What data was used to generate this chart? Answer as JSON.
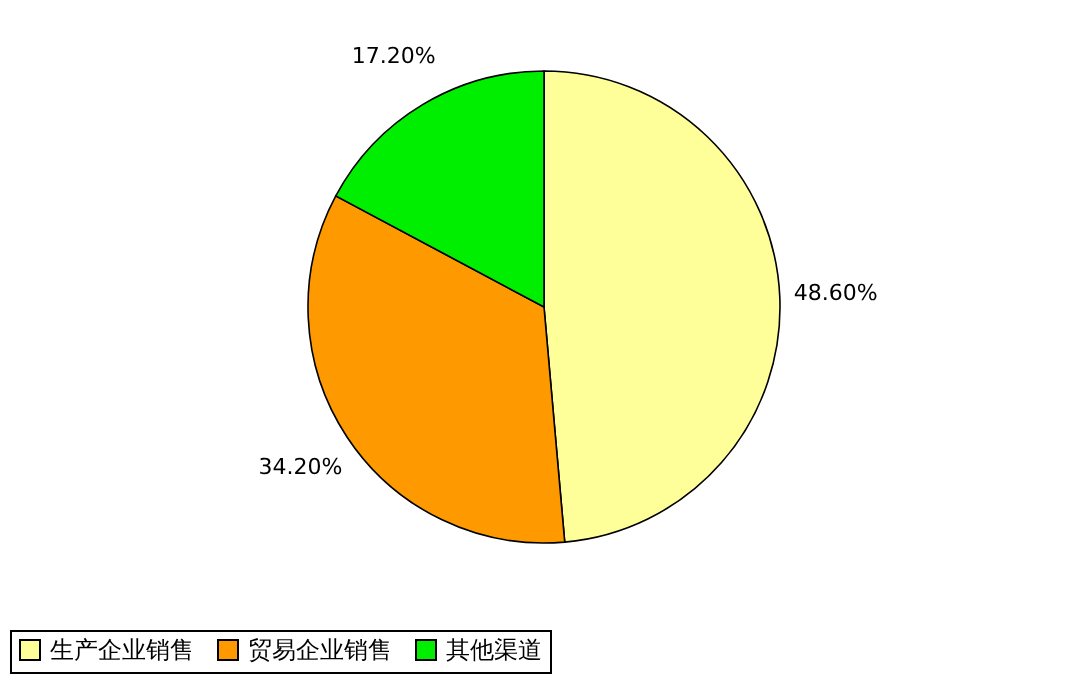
{
  "chart_data": {
    "type": "pie",
    "categories": [
      "生产企业销售",
      "贸易企业销售",
      "其他渠道"
    ],
    "values": [
      48.6,
      34.2,
      17.2
    ],
    "colors": [
      "#ffff99",
      "#ff9900",
      "#00ee00"
    ],
    "value_labels": [
      "48.60%",
      "34.20%",
      "17.20%"
    ],
    "legend": "bottom"
  }
}
